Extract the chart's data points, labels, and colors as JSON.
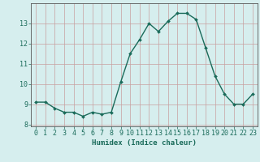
{
  "x": [
    0,
    1,
    2,
    3,
    4,
    5,
    6,
    7,
    8,
    9,
    10,
    11,
    12,
    13,
    14,
    15,
    16,
    17,
    18,
    19,
    20,
    21,
    22,
    23
  ],
  "y": [
    9.1,
    9.1,
    8.8,
    8.6,
    8.6,
    8.4,
    8.6,
    8.5,
    8.6,
    10.1,
    11.5,
    12.2,
    13.0,
    12.6,
    13.1,
    13.5,
    13.5,
    13.2,
    11.8,
    10.4,
    9.5,
    9.0,
    9.0,
    9.5
  ],
  "line_color": "#1a6b5a",
  "marker": "D",
  "marker_size": 2,
  "line_width": 1.0,
  "bg_color": "#d6eeee",
  "grid_color": "#b8d8d8",
  "xlabel": "Humidex (Indice chaleur)",
  "ylim": [
    7.9,
    14.0
  ],
  "xlim": [
    -0.5,
    23.5
  ],
  "yticks": [
    8,
    9,
    10,
    11,
    12,
    13
  ],
  "xticks": [
    0,
    1,
    2,
    3,
    4,
    5,
    6,
    7,
    8,
    9,
    10,
    11,
    12,
    13,
    14,
    15,
    16,
    17,
    18,
    19,
    20,
    21,
    22,
    23
  ],
  "tick_color": "#1a6b5a",
  "label_fontsize": 6.5,
  "tick_fontsize": 6.0,
  "spine_color": "#555555",
  "grid_major_color": "#c8a0a0",
  "grid_minor_color": "#d6eeee"
}
